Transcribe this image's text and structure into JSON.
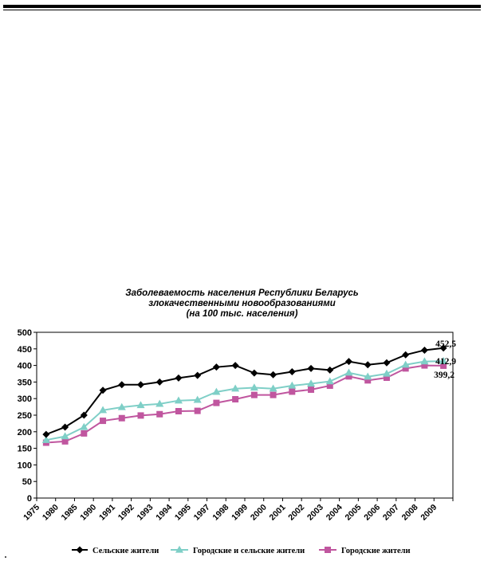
{
  "chart_data": {
    "type": "line",
    "title": [
      "Заболеваемость населения Республики Беларусь",
      "злокачественными новообразованиями",
      "(на 100 тыс. населения)"
    ],
    "xlabel": "",
    "ylabel": "",
    "ylim": [
      0,
      500
    ],
    "yticks": [
      "0",
      "50",
      "100",
      "150",
      "200",
      "250",
      "300",
      "350",
      "400",
      "450",
      "500"
    ],
    "categories": [
      "1975",
      "1980",
      "1985",
      "1990",
      "1991",
      "1992",
      "1993",
      "1994",
      "1995",
      "1997",
      "1998",
      "1999",
      "2000",
      "2001",
      "2002",
      "2003",
      "2004",
      "2005",
      "2006",
      "2007",
      "2008",
      "2009"
    ],
    "grid": false,
    "legend_position": "bottom",
    "series": [
      {
        "name": "Сельские жители",
        "color": "#000000",
        "marker": "diamond",
        "values": [
          192,
          214,
          250,
          325,
          342,
          342,
          350,
          362,
          370,
          395,
          400,
          377,
          372,
          381,
          391,
          386,
          412,
          402,
          408,
          432,
          446,
          452.5
        ]
      },
      {
        "name": "Городские и сельские жители",
        "color": "#7fcfc7",
        "marker": "triangle",
        "values": [
          175,
          186,
          214,
          265,
          274,
          280,
          284,
          294,
          296,
          320,
          330,
          333,
          330,
          339,
          345,
          352,
          378,
          366,
          375,
          402,
          412,
          412.9
        ]
      },
      {
        "name": "Городские жители",
        "color": "#c0569f",
        "marker": "square",
        "values": [
          167,
          171,
          195,
          233,
          241,
          249,
          253,
          262,
          263,
          287,
          298,
          311,
          311,
          321,
          327,
          339,
          367,
          355,
          363,
          391,
          400,
          399.2
        ]
      }
    ],
    "annotations": [
      "452,5",
      "412,9",
      "399,2"
    ]
  }
}
